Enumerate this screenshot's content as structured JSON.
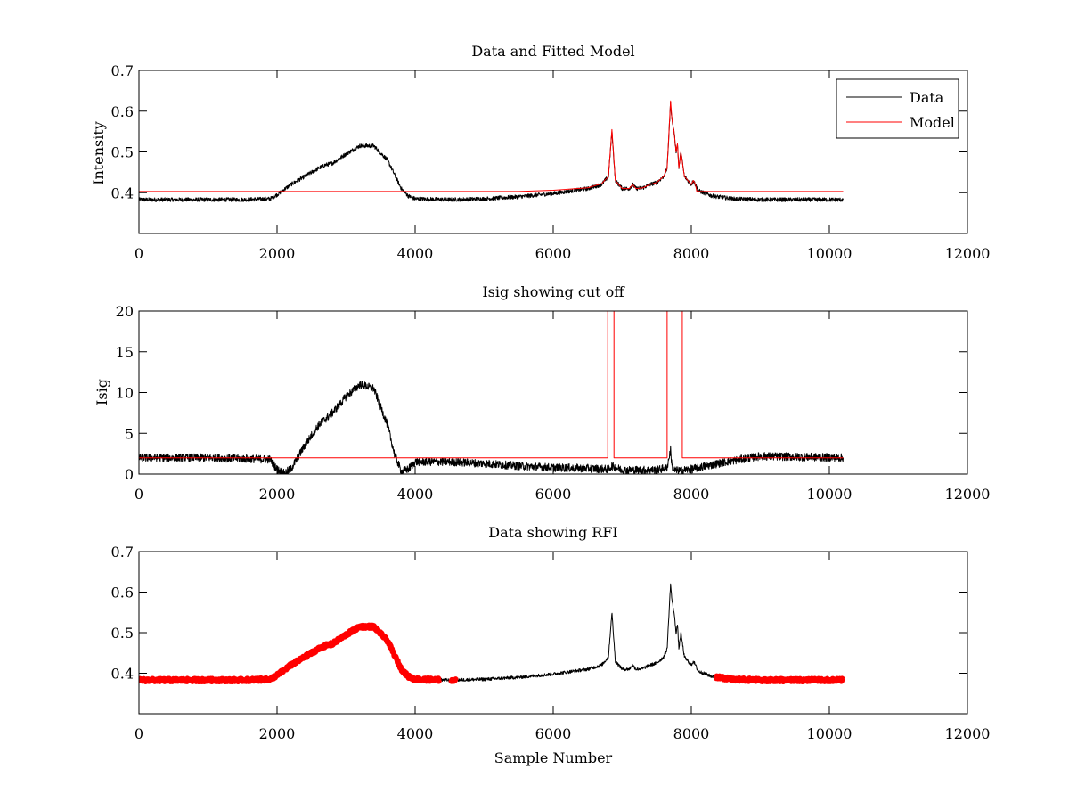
{
  "chart_data": [
    {
      "type": "line",
      "title": "Data and Fitted Model",
      "xlabel": "",
      "ylabel": "Intensity",
      "xlim": [
        0,
        12000
      ],
      "ylim": [
        0.3,
        0.7
      ],
      "xticks": [
        "0",
        "2000",
        "4000",
        "6000",
        "8000",
        "10000",
        "12000"
      ],
      "yticks": [
        "0.4",
        "0.5",
        "0.6",
        "0.7"
      ],
      "legend": {
        "position": "top-right",
        "entries": [
          "Data",
          "Model"
        ]
      },
      "series": [
        {
          "name": "Data",
          "color": "#000000",
          "noise": 0.005,
          "x": [
            0,
            500,
            1000,
            1500,
            1900,
            2000,
            2200,
            2400,
            2600,
            2700,
            2800,
            3000,
            3200,
            3400,
            3600,
            3800,
            3900,
            4000,
            4500,
            5000,
            5500,
            6000,
            6500,
            6700,
            6800,
            6850,
            6900,
            7000,
            7100,
            7150,
            7200,
            7300,
            7400,
            7500,
            7600,
            7650,
            7700,
            7720,
            7750,
            7780,
            7800,
            7820,
            7850,
            7900,
            7950,
            8000,
            8030,
            8060,
            8100,
            8300,
            8600,
            9000,
            9500,
            10200
          ],
          "y": [
            0.383,
            0.383,
            0.383,
            0.383,
            0.385,
            0.395,
            0.42,
            0.44,
            0.46,
            0.468,
            0.472,
            0.495,
            0.515,
            0.515,
            0.48,
            0.41,
            0.392,
            0.385,
            0.383,
            0.385,
            0.39,
            0.398,
            0.41,
            0.42,
            0.44,
            0.55,
            0.43,
            0.41,
            0.41,
            0.42,
            0.41,
            0.412,
            0.42,
            0.425,
            0.44,
            0.46,
            0.62,
            0.58,
            0.55,
            0.5,
            0.52,
            0.46,
            0.5,
            0.44,
            0.43,
            0.42,
            0.43,
            0.42,
            0.405,
            0.392,
            0.385,
            0.383,
            0.383,
            0.383
          ]
        },
        {
          "name": "Model",
          "color": "#ff0000",
          "x": [
            0,
            4500,
            5000,
            5500,
            6000,
            6500,
            6700,
            6800,
            6850,
            6900,
            7000,
            7100,
            7150,
            7200,
            7300,
            7400,
            7500,
            7600,
            7650,
            7700,
            7720,
            7750,
            7780,
            7800,
            7820,
            7850,
            7900,
            7950,
            8000,
            8030,
            8060,
            8080,
            8200,
            10200
          ],
          "y": [
            0.403,
            0.403,
            0.403,
            0.403,
            0.406,
            0.412,
            0.422,
            0.44,
            0.555,
            0.43,
            0.41,
            0.41,
            0.42,
            0.41,
            0.412,
            0.42,
            0.425,
            0.44,
            0.46,
            0.625,
            0.58,
            0.55,
            0.5,
            0.52,
            0.46,
            0.5,
            0.44,
            0.43,
            0.42,
            0.43,
            0.42,
            0.403,
            0.403,
            0.403
          ]
        }
      ]
    },
    {
      "type": "line",
      "title": "Isig showing cut off",
      "xlabel": "",
      "ylabel": "Isig",
      "xlim": [
        0,
        12000
      ],
      "ylim": [
        0,
        20
      ],
      "xticks": [
        "0",
        "2000",
        "4000",
        "6000",
        "8000",
        "10000",
        "12000"
      ],
      "yticks": [
        "0",
        "5",
        "10",
        "15",
        "20"
      ],
      "series": [
        {
          "color": "#000000",
          "noise": 0.5,
          "x": [
            0,
            1000,
            1900,
            2000,
            2100,
            2200,
            2400,
            2600,
            2800,
            3000,
            3200,
            3400,
            3600,
            3700,
            3800,
            3900,
            4000,
            4500,
            5000,
            5500,
            6000,
            6500,
            6800,
            6850,
            7000,
            7500,
            7650,
            7700,
            7720,
            7750,
            7800,
            8000,
            8500,
            9000,
            10200
          ],
          "y": [
            2,
            2,
            1.8,
            0.6,
            0.1,
            0.6,
            3.5,
            6,
            7.5,
            9.5,
            11,
            10.5,
            6,
            2.5,
            0.3,
            0.6,
            1.5,
            1.5,
            1.3,
            1.0,
            0.8,
            0.7,
            0.6,
            1.0,
            0.5,
            0.5,
            0.8,
            3.0,
            1.0,
            0.5,
            0.4,
            0.6,
            1.5,
            2.2,
            2.0
          ]
        },
        {
          "color": "#ff0000",
          "x": [
            0,
            6790,
            6790,
            6880,
            6880,
            7650,
            7650,
            7870,
            7870,
            10200
          ],
          "y": [
            2,
            2,
            20,
            20,
            2,
            2,
            20,
            20,
            2,
            2
          ]
        }
      ]
    },
    {
      "type": "line",
      "title": "Data showing RFI",
      "xlabel": "Sample Number",
      "ylabel": "",
      "xlim": [
        0,
        12000
      ],
      "ylim": [
        0.3,
        0.7
      ],
      "xticks": [
        "0",
        "2000",
        "4000",
        "6000",
        "8000",
        "10000",
        "12000"
      ],
      "yticks": [
        "0.4",
        "0.5",
        "0.6",
        "0.7"
      ],
      "series": [
        {
          "color": "#000000",
          "noise": 0.004,
          "x": [
            0,
            500,
            1000,
            1500,
            1900,
            2000,
            2200,
            2400,
            2600,
            2700,
            2800,
            3000,
            3200,
            3400,
            3600,
            3800,
            3900,
            4000,
            4500,
            5000,
            5500,
            6000,
            6500,
            6700,
            6800,
            6850,
            6900,
            7000,
            7100,
            7150,
            7200,
            7300,
            7400,
            7500,
            7600,
            7650,
            7700,
            7720,
            7750,
            7780,
            7800,
            7820,
            7850,
            7900,
            7950,
            8000,
            8030,
            8060,
            8100,
            8300,
            8600,
            9000,
            9500,
            10200
          ],
          "y": [
            0.383,
            0.383,
            0.383,
            0.383,
            0.385,
            0.395,
            0.42,
            0.44,
            0.46,
            0.468,
            0.472,
            0.495,
            0.515,
            0.515,
            0.48,
            0.41,
            0.392,
            0.385,
            0.383,
            0.385,
            0.39,
            0.398,
            0.41,
            0.42,
            0.44,
            0.55,
            0.43,
            0.41,
            0.41,
            0.42,
            0.41,
            0.412,
            0.42,
            0.425,
            0.44,
            0.46,
            0.62,
            0.58,
            0.55,
            0.5,
            0.52,
            0.46,
            0.5,
            0.44,
            0.43,
            0.42,
            0.43,
            0.42,
            0.405,
            0.392,
            0.385,
            0.383,
            0.383,
            0.383
          ]
        },
        {
          "color": "#ff0000",
          "thick": true,
          "ranges": [
            [
              0,
              4350
            ],
            [
              4520,
              4600
            ],
            [
              8350,
              10200
            ]
          ]
        }
      ]
    }
  ]
}
